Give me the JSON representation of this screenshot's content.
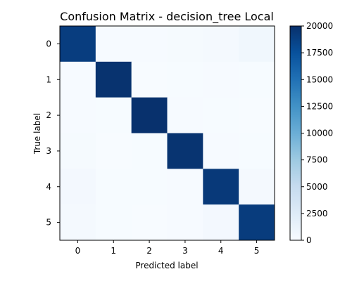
{
  "chart_data": {
    "type": "heatmap",
    "title": "Confusion Matrix - decision_tree Local",
    "xlabel": "Predicted label",
    "ylabel": "True label",
    "x_categories": [
      "0",
      "1",
      "2",
      "3",
      "4",
      "5"
    ],
    "y_categories": [
      "0",
      "1",
      "2",
      "3",
      "4",
      "5"
    ],
    "values": [
      [
        19000,
        120,
        150,
        200,
        350,
        700
      ],
      [
        80,
        19800,
        50,
        60,
        80,
        70
      ],
      [
        120,
        60,
        19900,
        80,
        60,
        50
      ],
      [
        180,
        50,
        70,
        19700,
        100,
        60
      ],
      [
        450,
        60,
        60,
        120,
        19300,
        300
      ],
      [
        350,
        60,
        50,
        80,
        400,
        19100
      ]
    ],
    "colormap": "Blues",
    "vmin": 0,
    "vmax": 20000,
    "colorbar_ticks": [
      "0",
      "2500",
      "5000",
      "7500",
      "10000",
      "12500",
      "15000",
      "17500",
      "20000"
    ],
    "colors": {
      "low": "#f7fbff",
      "high": "#08306b"
    }
  }
}
